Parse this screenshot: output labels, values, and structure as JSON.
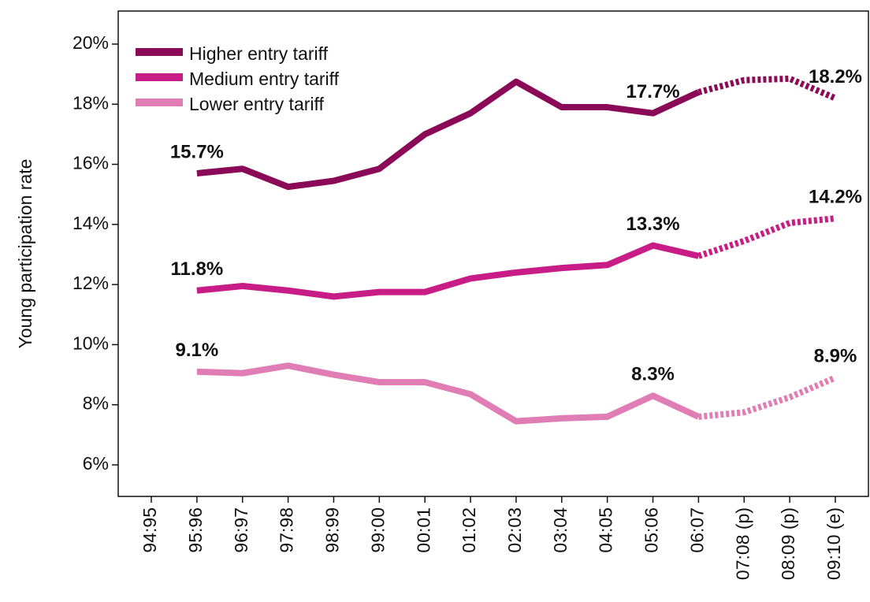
{
  "chart_data": {
    "type": "line",
    "y_label": "Young participation rate",
    "categories": [
      "94:95",
      "95:96",
      "96:97",
      "97:98",
      "98:99",
      "99:00",
      "00:01",
      "01:02",
      "02:03",
      "03:04",
      "04:05",
      "05:06",
      "06:07",
      "07:08 (p)",
      "08:09 (p)",
      "09:10 (e)"
    ],
    "projection_start": "06:07",
    "series": [
      {
        "name": "Higher entry tariff",
        "color": "#8b0a57",
        "values": [
          null,
          15.7,
          15.85,
          15.25,
          15.45,
          15.85,
          17.0,
          17.7,
          18.75,
          17.9,
          17.9,
          17.7,
          18.4,
          18.8,
          18.85,
          18.2
        ],
        "value_labels": [
          null,
          "15.7%",
          null,
          null,
          null,
          null,
          null,
          null,
          null,
          null,
          null,
          "17.7%",
          null,
          null,
          null,
          "18.2%"
        ]
      },
      {
        "name": "Medium entry tariff",
        "color": "#c81d87",
        "values": [
          null,
          11.8,
          11.95,
          11.8,
          11.6,
          11.75,
          11.75,
          12.2,
          12.4,
          12.55,
          12.65,
          13.3,
          12.95,
          13.45,
          14.05,
          14.2
        ],
        "value_labels": [
          null,
          "11.8%",
          null,
          null,
          null,
          null,
          null,
          null,
          null,
          null,
          null,
          "13.3%",
          null,
          null,
          null,
          "14.2%"
        ]
      },
      {
        "name": "Lower entry tariff",
        "color": "#e07db4",
        "values": [
          null,
          9.1,
          9.05,
          9.3,
          9.0,
          8.75,
          8.75,
          8.35,
          7.45,
          7.55,
          7.6,
          8.3,
          7.6,
          7.75,
          8.25,
          8.9
        ],
        "value_labels": [
          null,
          "9.1%",
          null,
          null,
          null,
          null,
          null,
          null,
          null,
          null,
          null,
          "8.3%",
          null,
          null,
          null,
          "8.9%"
        ]
      }
    ],
    "ylim": [
      4.95,
      21.1
    ],
    "yticks": [
      {
        "value": 6,
        "label": "6%"
      },
      {
        "value": 8,
        "label": "8%"
      },
      {
        "value": 10,
        "label": "10%"
      },
      {
        "value": 12,
        "label": "12%"
      },
      {
        "value": 14,
        "label": "14%"
      },
      {
        "value": 16,
        "label": "16%"
      },
      {
        "value": 18,
        "label": "18%"
      },
      {
        "value": 20,
        "label": "20%"
      }
    ],
    "legend": "top-left"
  }
}
